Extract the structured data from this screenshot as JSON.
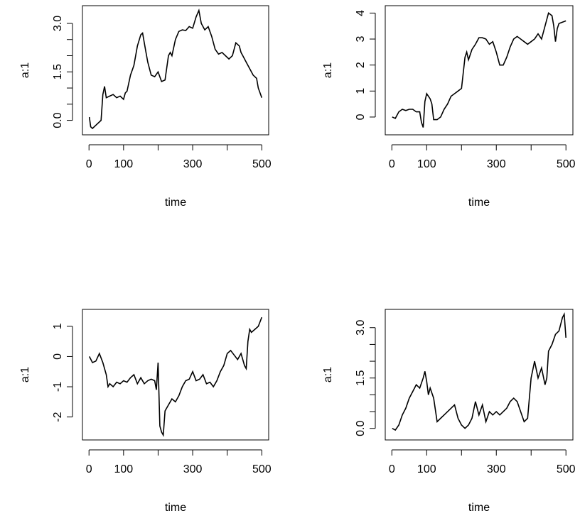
{
  "chart_data": [
    {
      "type": "line",
      "panel": "top-left",
      "xlabel": "time",
      "ylabel": "a:1",
      "xlim": [
        1,
        500
      ],
      "ylim": [
        -0.3,
        3.4
      ],
      "xticks": [
        0,
        100,
        300,
        500
      ],
      "xtick_marks": [
        0,
        100,
        200,
        300,
        400,
        500
      ],
      "yticks": [
        0.0,
        1.5,
        3.0
      ],
      "ytick_labels": [
        "0.0",
        "1.5",
        "3.0"
      ],
      "ytick_marks": [
        0.0,
        0.5,
        1.0,
        1.5,
        2.0,
        2.5,
        3.0
      ],
      "series": [
        {
          "x": [
            1,
            5,
            10,
            20,
            30,
            35,
            40,
            45,
            50,
            60,
            70,
            80,
            90,
            100,
            105,
            110,
            120,
            130,
            140,
            150,
            155,
            160,
            165,
            170,
            180,
            190,
            200,
            210,
            220,
            230,
            235,
            240,
            250,
            260,
            270,
            280,
            290,
            300,
            310,
            318,
            325,
            335,
            345,
            355,
            365,
            375,
            385,
            395,
            405,
            415,
            425,
            435,
            440,
            445,
            455,
            465,
            475,
            485,
            490,
            500
          ],
          "y": [
            0.1,
            -0.2,
            -0.25,
            -0.15,
            -0.05,
            0.0,
            0.8,
            1.05,
            0.7,
            0.75,
            0.8,
            0.7,
            0.75,
            0.65,
            0.85,
            0.9,
            1.4,
            1.7,
            2.3,
            2.65,
            2.7,
            2.4,
            2.1,
            1.8,
            1.4,
            1.35,
            1.5,
            1.2,
            1.25,
            2.0,
            2.1,
            2.0,
            2.5,
            2.75,
            2.8,
            2.78,
            2.9,
            2.85,
            3.2,
            3.4,
            3.0,
            2.8,
            2.9,
            2.6,
            2.2,
            2.05,
            2.1,
            2.0,
            1.9,
            2.0,
            2.4,
            2.3,
            2.1,
            2.0,
            1.8,
            1.6,
            1.4,
            1.3,
            1.0,
            0.7
          ]
        }
      ]
    },
    {
      "type": "line",
      "panel": "top-right",
      "xlabel": "time",
      "ylabel": "a:1",
      "xlim": [
        1,
        500
      ],
      "ylim": [
        -0.5,
        4.1
      ],
      "xticks": [
        0,
        100,
        300,
        500
      ],
      "xtick_marks": [
        0,
        100,
        200,
        300,
        400,
        500
      ],
      "yticks": [
        0,
        1,
        2,
        3,
        4
      ],
      "ytick_labels": [
        "0",
        "1",
        "2",
        "3",
        "4"
      ],
      "ytick_marks": [
        0,
        1,
        2,
        3,
        4
      ],
      "series": [
        {
          "x": [
            1,
            10,
            20,
            30,
            40,
            50,
            60,
            70,
            80,
            85,
            90,
            95,
            100,
            110,
            115,
            120,
            130,
            140,
            150,
            160,
            170,
            180,
            190,
            200,
            210,
            215,
            220,
            230,
            240,
            250,
            260,
            270,
            280,
            290,
            300,
            310,
            320,
            330,
            340,
            350,
            360,
            370,
            380,
            390,
            400,
            410,
            420,
            430,
            440,
            450,
            460,
            465,
            470,
            475,
            480,
            490,
            500
          ],
          "y": [
            0.0,
            -0.05,
            0.2,
            0.3,
            0.25,
            0.3,
            0.3,
            0.2,
            0.2,
            -0.2,
            -0.4,
            0.6,
            0.9,
            0.7,
            0.5,
            -0.1,
            -0.1,
            0.0,
            0.3,
            0.5,
            0.8,
            0.9,
            1.0,
            1.1,
            2.3,
            2.5,
            2.2,
            2.6,
            2.8,
            3.05,
            3.05,
            3.0,
            2.8,
            2.9,
            2.5,
            2.0,
            2.0,
            2.3,
            2.7,
            3.0,
            3.1,
            3.0,
            2.9,
            2.8,
            2.9,
            3.0,
            3.2,
            3.0,
            3.5,
            4.0,
            3.9,
            3.5,
            2.9,
            3.4,
            3.6,
            3.65,
            3.7
          ]
        }
      ]
    },
    {
      "type": "line",
      "panel": "bottom-left",
      "xlabel": "time",
      "ylabel": "a:1",
      "xlim": [
        1,
        500
      ],
      "ylim": [
        -2.6,
        1.4
      ],
      "xticks": [
        0,
        100,
        300,
        500
      ],
      "xtick_marks": [
        0,
        100,
        200,
        300,
        400,
        500
      ],
      "yticks": [
        -2,
        -1,
        0,
        1
      ],
      "ytick_labels": [
        "-2",
        "-1",
        "0",
        "1"
      ],
      "ytick_marks": [
        -2,
        -1,
        0,
        1
      ],
      "series": [
        {
          "x": [
            1,
            10,
            20,
            30,
            40,
            50,
            55,
            60,
            70,
            80,
            90,
            100,
            110,
            120,
            130,
            140,
            150,
            160,
            170,
            180,
            190,
            195,
            200,
            205,
            210,
            215,
            220,
            230,
            240,
            250,
            260,
            270,
            280,
            290,
            300,
            310,
            320,
            330,
            340,
            350,
            360,
            370,
            380,
            390,
            400,
            410,
            420,
            430,
            440,
            450,
            455,
            460,
            465,
            470,
            480,
            490,
            500
          ],
          "y": [
            0.0,
            -0.2,
            -0.15,
            0.1,
            -0.2,
            -0.6,
            -1.0,
            -0.9,
            -1.0,
            -0.85,
            -0.9,
            -0.8,
            -0.85,
            -0.7,
            -0.6,
            -0.9,
            -0.7,
            -0.9,
            -0.8,
            -0.75,
            -0.8,
            -1.1,
            -0.2,
            -2.3,
            -2.5,
            -2.6,
            -1.8,
            -1.6,
            -1.4,
            -1.5,
            -1.3,
            -1.0,
            -0.8,
            -0.75,
            -0.5,
            -0.8,
            -0.75,
            -0.6,
            -0.9,
            -0.85,
            -1.0,
            -0.8,
            -0.5,
            -0.3,
            0.1,
            0.2,
            0.05,
            -0.1,
            0.1,
            -0.3,
            -0.4,
            0.5,
            0.9,
            0.8,
            0.9,
            1.0,
            1.3
          ]
        }
      ]
    },
    {
      "type": "line",
      "panel": "bottom-right",
      "xlabel": "time",
      "ylabel": "a:1",
      "xlim": [
        1,
        500
      ],
      "ylim": [
        -0.2,
        3.4
      ],
      "xticks": [
        0,
        100,
        300,
        500
      ],
      "xtick_marks": [
        0,
        100,
        200,
        300,
        400,
        500
      ],
      "yticks": [
        0.0,
        1.5,
        3.0
      ],
      "ytick_labels": [
        "0.0",
        "1.5",
        "3.0"
      ],
      "ytick_marks": [
        0.0,
        0.5,
        1.0,
        1.5,
        2.0,
        2.5,
        3.0
      ],
      "series": [
        {
          "x": [
            1,
            10,
            20,
            30,
            40,
            50,
            60,
            70,
            80,
            90,
            95,
            100,
            105,
            110,
            120,
            130,
            140,
            150,
            160,
            170,
            180,
            190,
            200,
            210,
            220,
            230,
            240,
            250,
            260,
            270,
            280,
            290,
            300,
            310,
            320,
            330,
            340,
            350,
            360,
            370,
            380,
            390,
            400,
            410,
            420,
            430,
            440,
            445,
            450,
            460,
            470,
            480,
            490,
            495,
            500
          ],
          "y": [
            0.0,
            -0.05,
            0.1,
            0.4,
            0.6,
            0.9,
            1.1,
            1.3,
            1.2,
            1.5,
            1.7,
            1.4,
            1.0,
            1.2,
            0.9,
            0.2,
            0.3,
            0.4,
            0.5,
            0.6,
            0.7,
            0.3,
            0.1,
            0.0,
            0.1,
            0.3,
            0.8,
            0.4,
            0.7,
            0.2,
            0.5,
            0.4,
            0.5,
            0.4,
            0.5,
            0.6,
            0.8,
            0.9,
            0.8,
            0.5,
            0.2,
            0.3,
            1.5,
            2.0,
            1.5,
            1.8,
            1.3,
            1.5,
            2.3,
            2.5,
            2.8,
            2.9,
            3.3,
            3.4,
            2.7
          ]
        }
      ]
    }
  ]
}
